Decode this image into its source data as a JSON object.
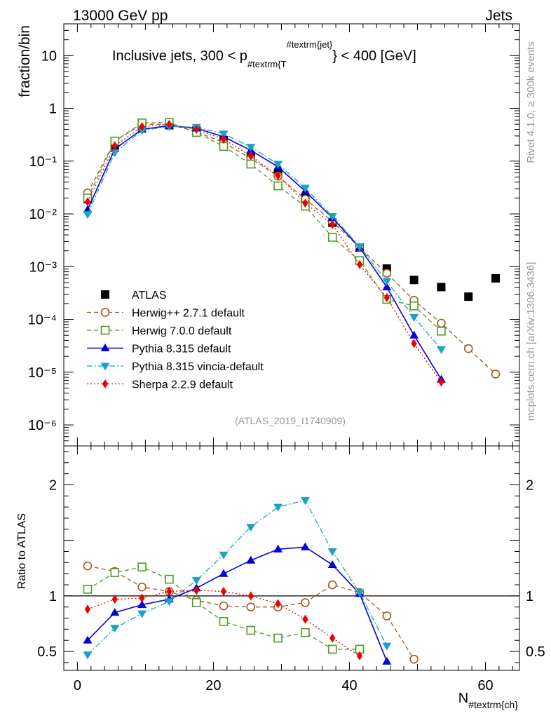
{
  "header": {
    "left": "13000 GeV pp",
    "right": "Jets"
  },
  "plot_title": {
    "main": "Inclusive jets, 300 < p",
    "sub": "#textrm{T",
    "sup": "#textrm{jet}",
    "tail": "} < 400 [GeV]"
  },
  "side_labels": {
    "rivet": "Rivet 4.1.0, ≥ 300k events",
    "mcplots": "mcplots.cern.ch [arXiv:1306.3436]"
  },
  "analysis_tag": "(ATLAS_2019_I1740909)",
  "chart_data": [
    {
      "type": "scatter",
      "title": "Inclusive jets, 300 < p_T^jet < 400 [GeV]",
      "ylabel": "fraction/bin",
      "xlabel": "N#textrm{ch}",
      "yscale": "log",
      "xlim": [
        -2,
        65
      ],
      "ylim": [
        4e-07,
        40
      ],
      "y_ticks": [
        "10",
        "1",
        "10⁻¹",
        "10⁻²",
        "10⁻³",
        "10⁻⁴",
        "10⁻⁵",
        "10⁻⁶"
      ],
      "legend_placement": "center-left",
      "series": [
        {
          "name": "ATLAS",
          "color": "#000000",
          "marker": "square-filled",
          "x": [
            1.5,
            5.5,
            9.5,
            13.5,
            17.5,
            21.5,
            25.5,
            29.5,
            33.5,
            37.5,
            41.5,
            45.5,
            49.5,
            53.5,
            57.5,
            61.5
          ],
          "y": [
            0.019,
            0.2,
            0.46,
            0.48,
            0.38,
            0.25,
            0.125,
            0.058,
            0.02,
            0.0068,
            0.0023,
            0.00092,
            0.00056,
            0.00041,
            0.00027,
            0.0006
          ]
        },
        {
          "name": "Herwig++ 2.7.1 default",
          "color": "#a05a1e",
          "marker": "circle-open",
          "dash": "6,4",
          "x": [
            1.5,
            5.5,
            9.5,
            13.5,
            17.5,
            21.5,
            25.5,
            29.5,
            33.5,
            37.5,
            41.5,
            45.5,
            49.5,
            53.5,
            57.5,
            61.5
          ],
          "y": [
            0.025,
            0.24,
            0.5,
            0.5,
            0.36,
            0.225,
            0.112,
            0.052,
            0.019,
            0.0072,
            0.0023,
            0.00075,
            0.00023,
            8.5e-05,
            2.8e-05,
            9.2e-06
          ]
        },
        {
          "name": "Herwig 7.0.0 default",
          "color": "#4f9a20",
          "marker": "square-open",
          "dash": "6,4",
          "x": [
            1.5,
            5.5,
            9.5,
            13.5,
            17.5,
            21.5,
            25.5,
            29.5,
            33.5,
            37.5,
            41.5,
            45.5,
            49.5,
            53.5
          ],
          "y": [
            0.02,
            0.24,
            0.53,
            0.54,
            0.35,
            0.19,
            0.088,
            0.034,
            0.014,
            0.0036,
            0.0013,
            0.00024,
            0.00018,
            6e-05
          ]
        },
        {
          "name": "Pythia 8.315 default",
          "color": "#0000dd",
          "marker": "triangle-up",
          "dash": "",
          "x": [
            1.5,
            5.5,
            9.5,
            13.5,
            17.5,
            21.5,
            25.5,
            29.5,
            33.5,
            37.5,
            41.5,
            45.5,
            49.5,
            53.5
          ],
          "y": [
            0.012,
            0.17,
            0.4,
            0.47,
            0.42,
            0.29,
            0.16,
            0.078,
            0.027,
            0.0084,
            0.0023,
            0.00041,
            5e-05,
            7.3e-06
          ]
        },
        {
          "name": "Pythia 8.315 vincia-default",
          "color": "#1ba3c6",
          "marker": "triangle-down",
          "dash": "8,3,2,3",
          "x": [
            1.5,
            5.5,
            9.5,
            13.5,
            17.5,
            21.5,
            25.5,
            29.5,
            33.5,
            37.5,
            41.5,
            45.5,
            49.5,
            53.5
          ],
          "y": [
            0.0098,
            0.145,
            0.38,
            0.455,
            0.44,
            0.33,
            0.185,
            0.088,
            0.031,
            0.009,
            0.0024,
            0.00053,
            0.00011,
            2.7e-05
          ]
        },
        {
          "name": "Sherpa 2.2.9 default",
          "color": "#ee0000",
          "marker": "diamond",
          "dash": "2,3",
          "x": [
            1.5,
            5.5,
            9.5,
            13.5,
            17.5,
            21.5,
            25.5,
            29.5,
            33.5,
            37.5,
            41.5,
            45.5,
            49.5,
            53.5
          ],
          "y": [
            0.017,
            0.195,
            0.45,
            0.5,
            0.4,
            0.26,
            0.125,
            0.053,
            0.016,
            0.0063,
            0.0011,
            0.00026,
            3.5e-05,
            6.5e-06
          ]
        }
      ]
    },
    {
      "type": "line",
      "ylabel": "Ratio to ATLAS",
      "xlabel": "N#textrm{ch}",
      "xlim": [
        -2,
        65
      ],
      "ylim": [
        0.33,
        2.35
      ],
      "y_ticks": [
        "0.5",
        "1",
        "2"
      ],
      "x_ticks": [
        "0",
        "20",
        "40",
        "60"
      ],
      "reference_line": 1,
      "series": [
        {
          "name": "Herwig++ 2.7.1 default",
          "color": "#a05a1e",
          "marker": "circle-open",
          "dash": "6,4",
          "x": [
            1.5,
            5.5,
            9.5,
            13.5,
            17.5,
            21.5,
            25.5,
            29.5,
            33.5,
            37.5,
            41.5,
            45.5,
            49.5
          ],
          "y": [
            1.27,
            1.22,
            1.08,
            1.04,
            0.96,
            0.91,
            0.9,
            0.9,
            0.94,
            1.1,
            1.03,
            0.82,
            0.43
          ]
        },
        {
          "name": "Herwig 7.0.0 default",
          "color": "#4f9a20",
          "marker": "square-open",
          "dash": "6,4",
          "x": [
            1.5,
            5.5,
            9.5,
            13.5,
            17.5,
            21.5,
            25.5,
            29.5,
            33.5,
            37.5,
            41.5
          ],
          "y": [
            1.06,
            1.21,
            1.26,
            1.15,
            0.94,
            0.77,
            0.69,
            0.62,
            0.67,
            0.52,
            0.52
          ]
        },
        {
          "name": "Pythia 8.315 default",
          "color": "#0000dd",
          "marker": "triangle-up",
          "dash": "",
          "x": [
            1.5,
            5.5,
            9.5,
            13.5,
            17.5,
            21.5,
            25.5,
            29.5,
            33.5,
            37.5,
            41.5,
            45.5
          ],
          "y": [
            0.6,
            0.85,
            0.92,
            0.97,
            1.07,
            1.2,
            1.32,
            1.42,
            1.44,
            1.28,
            1.02,
            0.41
          ]
        },
        {
          "name": "Pythia 8.315 vincia-default",
          "color": "#1ba3c6",
          "marker": "triangle-down",
          "dash": "8,3,2,3",
          "x": [
            1.5,
            5.5,
            9.5,
            13.5,
            17.5,
            21.5,
            25.5,
            29.5,
            33.5,
            37.5,
            41.5,
            45.5
          ],
          "y": [
            0.47,
            0.71,
            0.84,
            0.95,
            1.14,
            1.37,
            1.62,
            1.8,
            1.86,
            1.4,
            1.03,
            0.55
          ]
        },
        {
          "name": "Sherpa 2.2.9 default",
          "color": "#ee0000",
          "marker": "diamond",
          "dash": "2,3",
          "x": [
            1.5,
            5.5,
            9.5,
            13.5,
            17.5,
            21.5,
            25.5,
            29.5,
            33.5,
            37.5,
            41.5
          ],
          "y": [
            0.88,
            0.97,
            0.98,
            1.04,
            1.05,
            1.04,
            1.0,
            0.93,
            0.79,
            0.62,
            0.46
          ]
        }
      ]
    }
  ]
}
